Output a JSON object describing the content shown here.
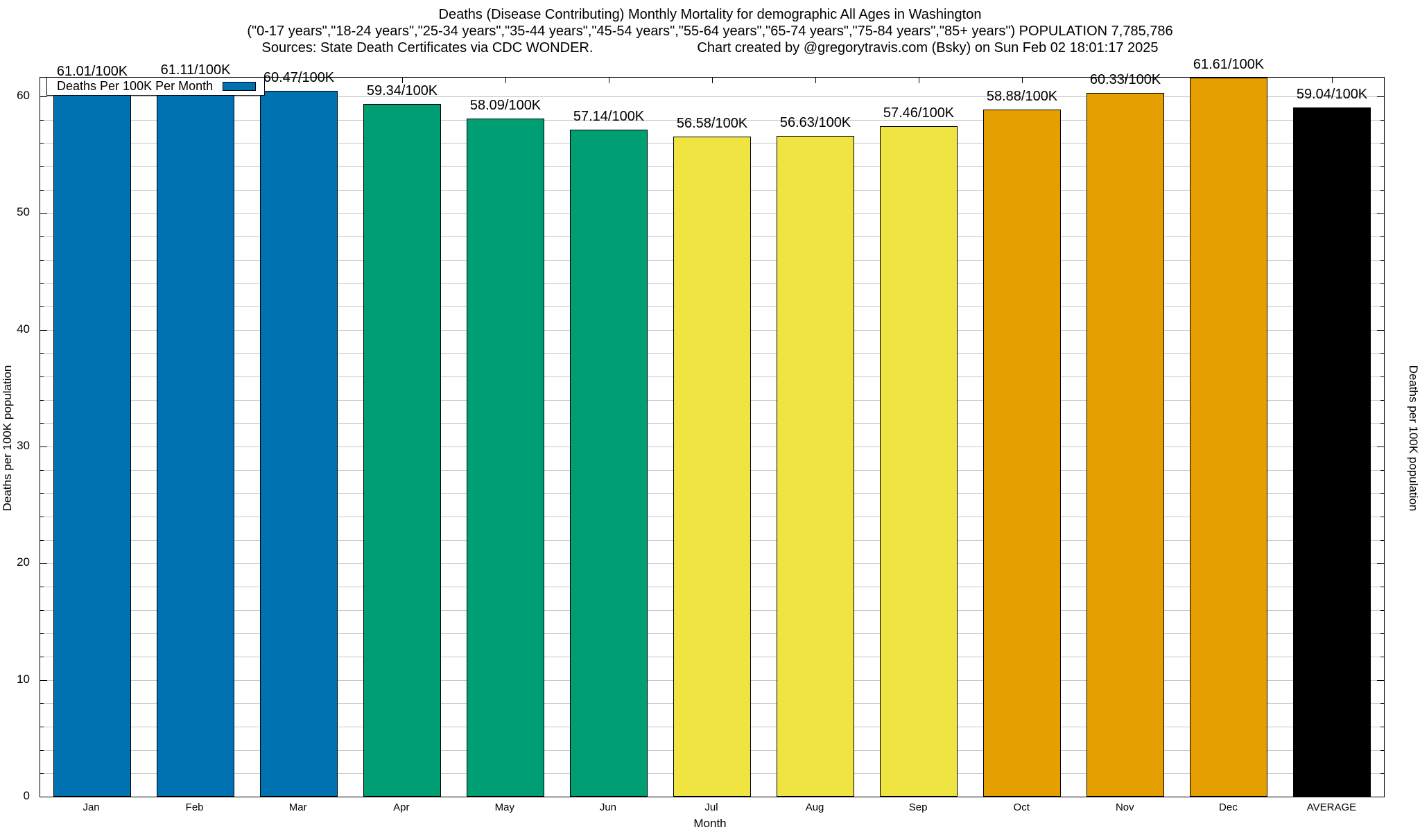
{
  "chart_data": {
    "type": "bar",
    "title": "Deaths (Disease Contributing) Monthly Mortality for demographic All Ages in Washington",
    "subtitle": "(\"0-17 years\",\"18-24 years\",\"25-34 years\",\"35-44 years\",\"45-54 years\",\"55-64 years\",\"65-74 years\",\"75-84 years\",\"85+ years\") POPULATION 7,785,786",
    "source_note": "Sources: State Death Certificates via CDC WONDER.",
    "credit_note": "Chart created by @gregorytravis.com (Bsky) on Sun Feb 02 18:01:17 2025",
    "categories": [
      "Jan",
      "Feb",
      "Mar",
      "Apr",
      "May",
      "Jun",
      "Jul",
      "Aug",
      "Sep",
      "Oct",
      "Nov",
      "Dec",
      "AVERAGE"
    ],
    "values": [
      61.01,
      61.11,
      60.47,
      59.34,
      58.09,
      57.14,
      56.58,
      56.63,
      57.46,
      58.88,
      60.33,
      61.61,
      59.04
    ],
    "bar_labels": [
      "61.01/100K",
      "61.11/100K",
      "60.47/100K",
      "59.34/100K",
      "58.09/100K",
      "57.14/100K",
      "56.58/100K",
      "56.63/100K",
      "57.46/100K",
      "58.88/100K",
      "60.33/100K",
      "61.61/100K",
      "59.04/100K"
    ],
    "bar_color_keys": [
      "blue",
      "blue",
      "blue",
      "green",
      "green",
      "green",
      "yellow",
      "yellow",
      "yellow",
      "orange",
      "orange",
      "orange",
      "black"
    ],
    "palette": {
      "blue": "#0072B2",
      "green": "#009E73",
      "yellow": "#F0E442",
      "orange": "#E69F00",
      "black": "#000000"
    },
    "grid_color": "#c8c8c8",
    "xlabel": "Month",
    "ylabel_left": "Deaths per 100K population",
    "ylabel_right": "Deaths per 100K population",
    "ylim": [
      0,
      61.61
    ],
    "yticks": [
      0,
      10,
      20,
      30,
      40,
      50,
      60
    ],
    "minor_tick_step": 2,
    "grid": true,
    "legend": {
      "label": "Deaths Per 100K Per Month",
      "position": "top-left",
      "swatch_color_key": "blue"
    }
  }
}
